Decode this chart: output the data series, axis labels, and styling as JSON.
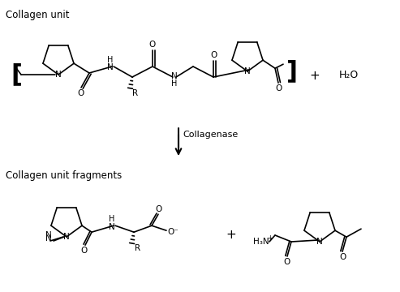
{
  "title_top": "Collagen unit",
  "title_bottom": "Collagen unit fragments",
  "enzyme_label": "Collagenase",
  "background_color": "#ffffff",
  "figsize": [
    4.93,
    3.6
  ],
  "dpi": 100
}
